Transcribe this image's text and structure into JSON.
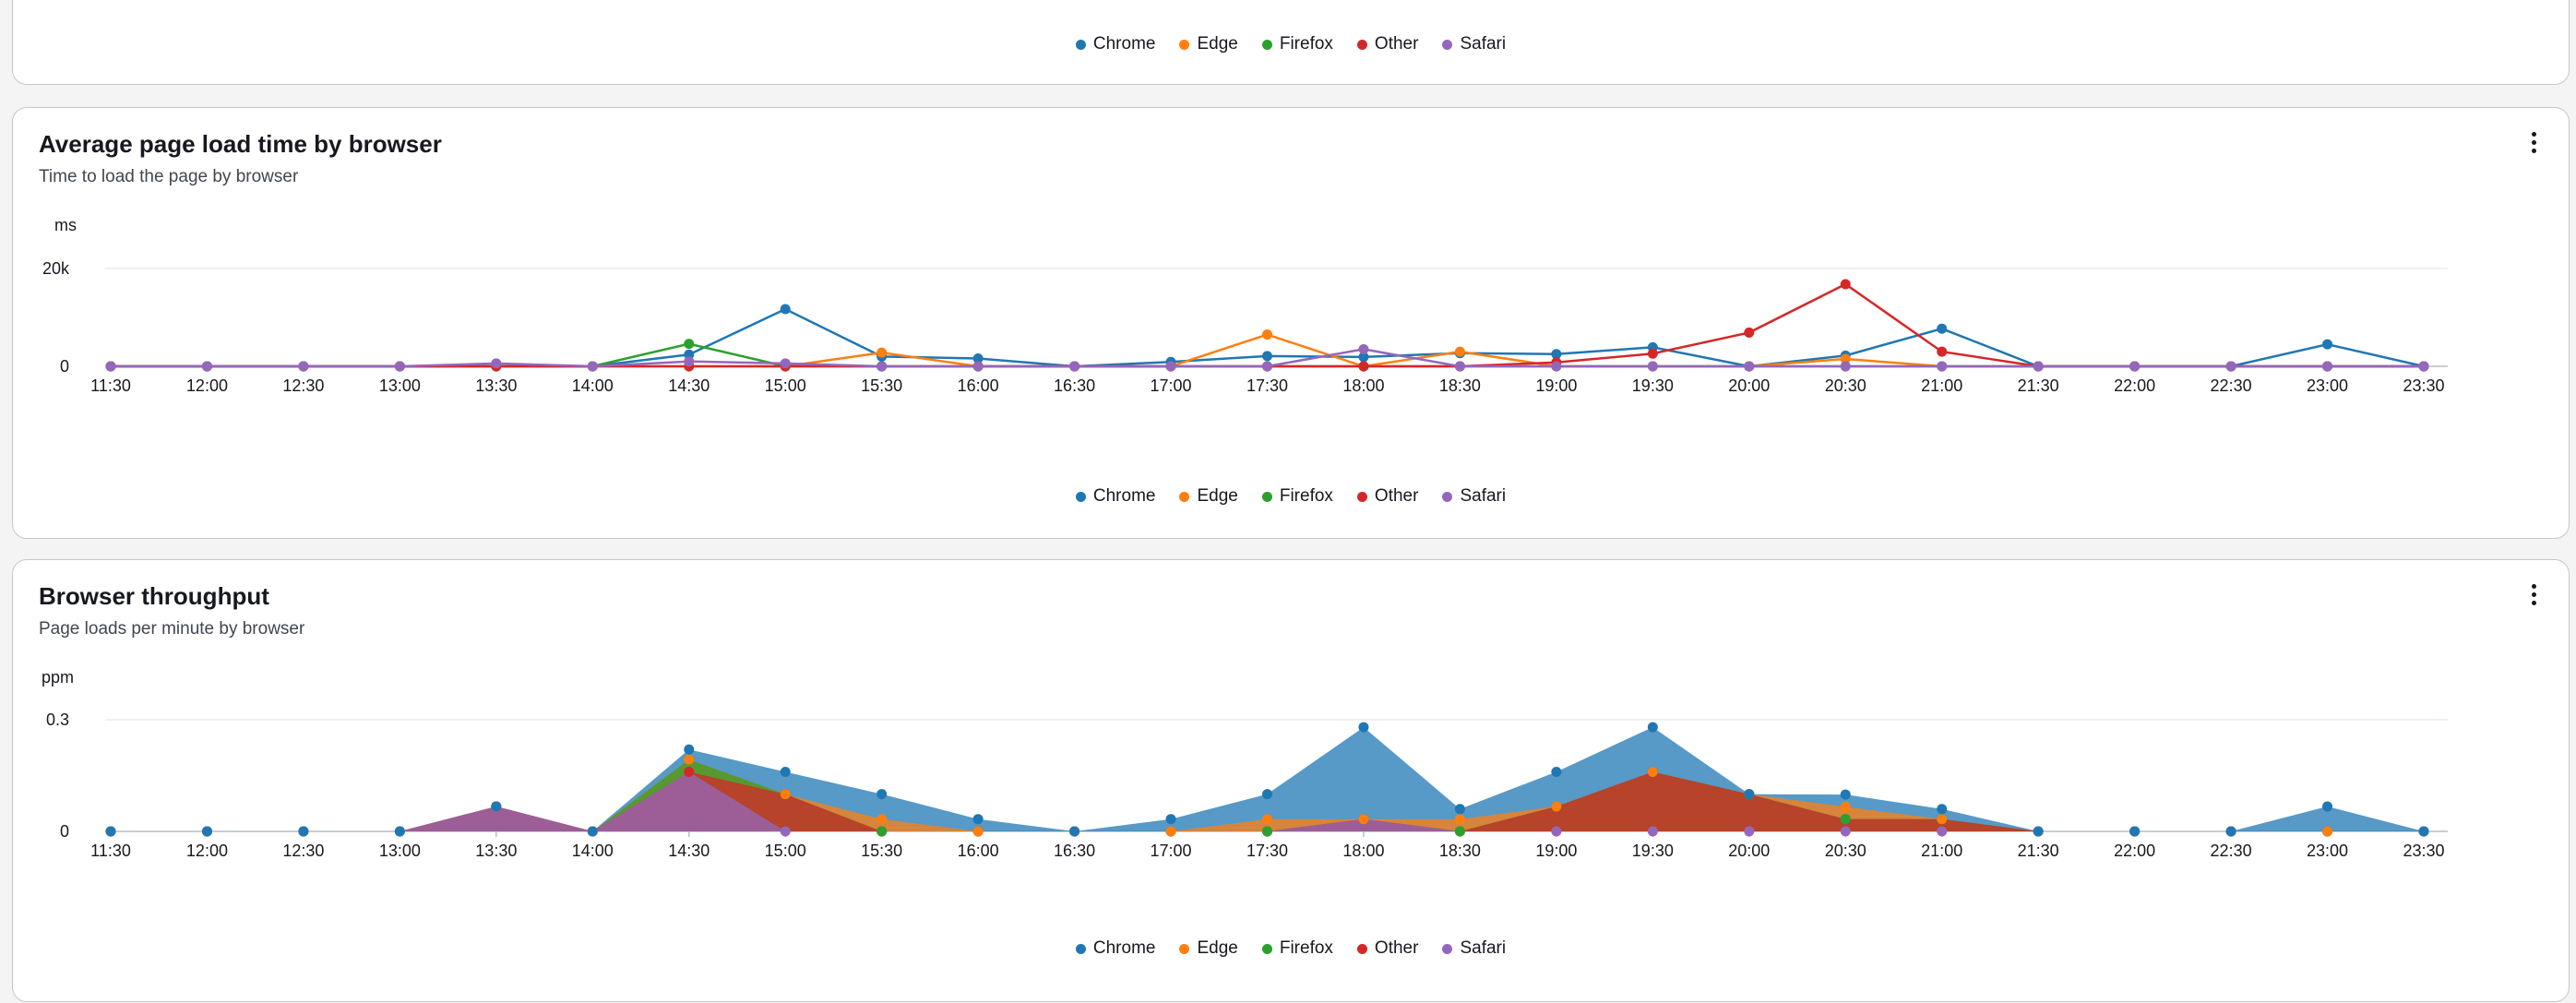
{
  "series_names": [
    "Chrome",
    "Edge",
    "Firefox",
    "Other",
    "Safari"
  ],
  "series_colors": [
    "#1f77b4",
    "#ff7f0e",
    "#2ca02c",
    "#d62728",
    "#9467bd"
  ],
  "legend_top": {
    "items": [
      "Chrome",
      "Edge",
      "Firefox",
      "Other",
      "Safari"
    ]
  },
  "panels": {
    "load": {
      "title": "Average page load time by browser",
      "subtitle": "Time to load the page by browser",
      "legend": [
        "Chrome",
        "Edge",
        "Firefox",
        "Other",
        "Safari"
      ]
    },
    "throughput": {
      "title": "Browser throughput",
      "subtitle": "Page loads per minute by browser",
      "legend": [
        "Chrome",
        "Edge",
        "Firefox",
        "Other",
        "Safari"
      ]
    }
  },
  "chart_data": [
    {
      "type": "line",
      "title": "Average page load time by browser",
      "subtitle": "Time to load the page by browser",
      "ylabel": "ms",
      "ylim": [
        0,
        20000
      ],
      "yticks": [
        {
          "value": 0,
          "label": "0"
        },
        {
          "value": 20000,
          "label": "20k"
        }
      ],
      "grid": true,
      "legend_position": "bottom",
      "x": [
        "11:30",
        "12:00",
        "12:30",
        "13:00",
        "13:30",
        "14:00",
        "14:30",
        "15:00",
        "15:30",
        "16:00",
        "16:30",
        "17:00",
        "17:30",
        "18:00",
        "18:30",
        "19:00",
        "19:30",
        "20:00",
        "20:30",
        "21:00",
        "21:30",
        "22:00",
        "22:30",
        "23:00",
        "23:30"
      ],
      "series": [
        {
          "name": "Chrome",
          "values": [
            0,
            0,
            0,
            0,
            0,
            0,
            2400,
            11700,
            2000,
            1600,
            0,
            900,
            2100,
            1900,
            2700,
            2500,
            3900,
            0,
            2200,
            7700,
            0,
            0,
            0,
            4500,
            0
          ]
        },
        {
          "name": "Edge",
          "values": [
            0,
            0,
            0,
            0,
            0,
            0,
            0,
            0,
            2800,
            0,
            0,
            0,
            6500,
            0,
            3000,
            0,
            0,
            0,
            1500,
            0,
            0,
            0,
            0,
            0,
            0
          ]
        },
        {
          "name": "Firefox",
          "values": [
            0,
            0,
            0,
            0,
            0,
            0,
            4600,
            0,
            0,
            0,
            0,
            0,
            0,
            0,
            0,
            0,
            0,
            0,
            0,
            0,
            0,
            0,
            0,
            0,
            0
          ]
        },
        {
          "name": "Other",
          "values": [
            0,
            0,
            0,
            0,
            0,
            0,
            0,
            0,
            0,
            0,
            0,
            0,
            0,
            0,
            0,
            800,
            2600,
            6900,
            16800,
            3000,
            0,
            0,
            0,
            0,
            0
          ]
        },
        {
          "name": "Safari",
          "values": [
            0,
            0,
            0,
            0,
            600,
            0,
            1000,
            600,
            0,
            0,
            0,
            0,
            0,
            3500,
            0,
            0,
            0,
            0,
            0,
            0,
            0,
            0,
            0,
            0,
            0
          ]
        }
      ]
    },
    {
      "type": "area",
      "stacked": true,
      "title": "Browser throughput",
      "subtitle": "Page loads per minute by browser",
      "ylabel": "ppm",
      "ylim": [
        0,
        0.3
      ],
      "yticks": [
        {
          "value": 0,
          "label": "0"
        },
        {
          "value": 0.3,
          "label": "0.3"
        }
      ],
      "grid": true,
      "legend_position": "bottom",
      "x": [
        "11:30",
        "12:00",
        "12:30",
        "13:00",
        "13:30",
        "14:00",
        "14:30",
        "15:00",
        "15:30",
        "16:00",
        "16:30",
        "17:00",
        "17:30",
        "18:00",
        "18:30",
        "19:00",
        "19:30",
        "20:00",
        "20:30",
        "21:00",
        "21:30",
        "22:00",
        "22:30",
        "23:00",
        "23:30"
      ],
      "series": [
        {
          "name": "Safari",
          "values": [
            0,
            0,
            0,
            0,
            0.067,
            0,
            0.16,
            0,
            0,
            0,
            0,
            0,
            0,
            0.033,
            0,
            0,
            0,
            0,
            0,
            0,
            0,
            0,
            0,
            0,
            0
          ]
        },
        {
          "name": "Other",
          "values": [
            0,
            0,
            0,
            0,
            0,
            0,
            0,
            0.1,
            0,
            0,
            0,
            0,
            0,
            0,
            0,
            0.067,
            0.16,
            0.1,
            0.033,
            0.033,
            0,
            0,
            0,
            0,
            0
          ]
        },
        {
          "name": "Firefox",
          "values": [
            0,
            0,
            0,
            0,
            0,
            0,
            0.033,
            0,
            0,
            0,
            0,
            0,
            0,
            0,
            0,
            0,
            0,
            0,
            0,
            0,
            0,
            0,
            0,
            0,
            0
          ]
        },
        {
          "name": "Edge",
          "values": [
            0,
            0,
            0,
            0,
            0,
            0,
            0,
            0,
            0.033,
            0,
            0,
            0,
            0.033,
            0,
            0.033,
            0,
            0,
            0,
            0.033,
            0,
            0,
            0,
            0,
            0,
            0
          ]
        },
        {
          "name": "Chrome",
          "values": [
            0,
            0,
            0,
            0,
            0,
            0,
            0.027,
            0.06,
            0.067,
            0.033,
            0,
            0.033,
            0.067,
            0.247,
            0.027,
            0.093,
            0.12,
            0,
            0.033,
            0.027,
            0,
            0,
            0,
            0.067,
            0
          ]
        }
      ]
    }
  ]
}
